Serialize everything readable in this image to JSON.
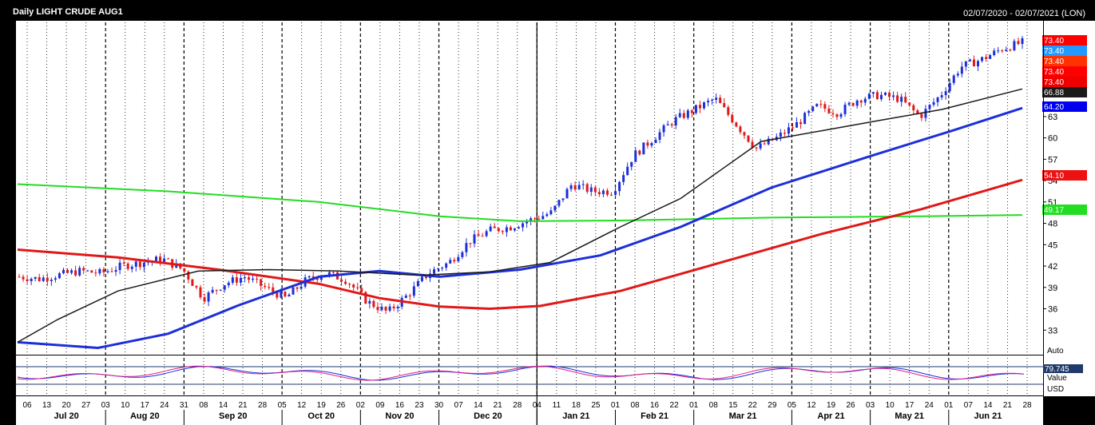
{
  "window": {
    "title": "Daily LIGHT CRUDE AUG1",
    "date_range": "02/07/2020 - 02/07/2021 (LON)"
  },
  "oscillator": {
    "auto_label": "Auto",
    "value_badge": "79.745",
    "value_label": "Value",
    "currency_label": "USD"
  },
  "chart_data": {
    "type": "candlestick",
    "title": "Daily LIGHT CRUDE AUG1",
    "ylim": [
      30,
      76
    ],
    "yticks": [
      33,
      36,
      39,
      42,
      45,
      48,
      51,
      54,
      57,
      60,
      63
    ],
    "grid": true,
    "x_day_labels": [
      "06",
      "13",
      "20",
      "27",
      "03",
      "10",
      "17",
      "24",
      "31",
      "08",
      "14",
      "21",
      "28",
      "05",
      "12",
      "19",
      "26",
      "02",
      "09",
      "16",
      "23",
      "30",
      "07",
      "14",
      "21",
      "28",
      "04",
      "11",
      "18",
      "25",
      "01",
      "08",
      "16",
      "22",
      "01",
      "08",
      "15",
      "22",
      "29",
      "05",
      "12",
      "19",
      "26",
      "03",
      "10",
      "17",
      "24",
      "01",
      "07",
      "14",
      "21",
      "28"
    ],
    "x_month_labels": [
      "Jul 20",
      "Aug 20",
      "Sep 20",
      "Oct 20",
      "Nov 20",
      "Dec 20",
      "Jan 21",
      "Feb 21",
      "Mar 21",
      "Apr 21",
      "May 21",
      "Jun 21"
    ],
    "price_waypoints": [
      40.5,
      40.2,
      40.8,
      41.3,
      41.0,
      42.0,
      42.5,
      43.0,
      41.5,
      37.5,
      39.5,
      40.5,
      39.0,
      37.5,
      40.0,
      41.0,
      40.0,
      37.0,
      35.5,
      38.0,
      41.0,
      42.5,
      45.5,
      47.0,
      47.5,
      48.5,
      49.5,
      53.5,
      52.5,
      52.5,
      57.5,
      60.0,
      62.5,
      64.0,
      65.5,
      62.0,
      58.5,
      60.0,
      62.0,
      64.5,
      63.5,
      65.5,
      66.0,
      65.5,
      63.0,
      66.0,
      70.0,
      71.0,
      72.5,
      73.4
    ],
    "series": [
      {
        "name": "",
        "color": "#1a1a1a",
        "ends": [
          31.3,
          66.88
        ]
      },
      {
        "name": "",
        "color": "#1c2fd8",
        "ends": [
          31.3,
          64.2
        ]
      },
      {
        "name": "",
        "color": "#e01818",
        "ends": [
          44.3,
          54.1
        ]
      },
      {
        "name": "",
        "color": "#22dd22",
        "ends": [
          53.5,
          49.17
        ]
      }
    ],
    "right_badges": [
      {
        "text": "73.40",
        "color": "#ff0000"
      },
      {
        "text": "73.40",
        "color": "#2299ff"
      },
      {
        "text": "73.40",
        "color": "#ff3300"
      },
      {
        "text": "73.40",
        "color": "#ff0000"
      },
      {
        "text": "73.40",
        "color": "#ee0000"
      },
      {
        "text": "66.88",
        "color": "#1a1a1a"
      },
      {
        "text": "64.20",
        "color": "#0000ee"
      },
      {
        "text": "54.10",
        "color": "#ee1111"
      },
      {
        "text": "49.17",
        "color": "#22dd22"
      }
    ]
  }
}
